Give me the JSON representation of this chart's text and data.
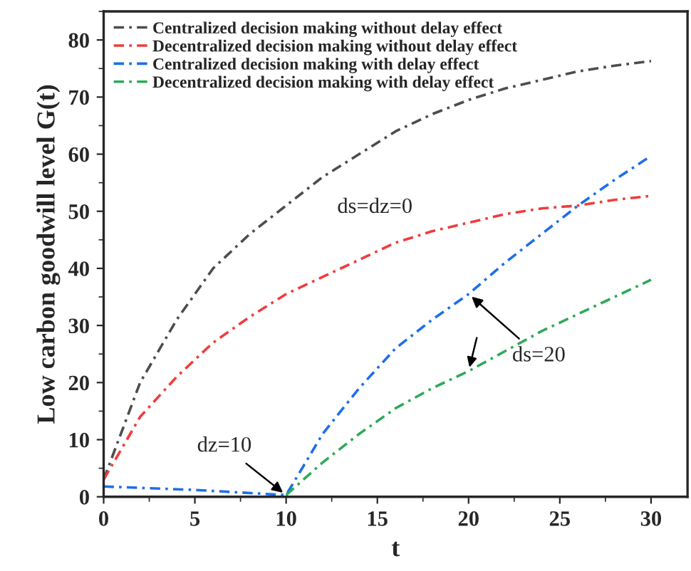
{
  "chart_data": {
    "type": "line",
    "xlabel": "t",
    "ylabel": "Low carbon goodwill level G(t)",
    "xlim": [
      0,
      32
    ],
    "ylim": [
      0,
      85
    ],
    "xticks": [
      0,
      5,
      10,
      15,
      20,
      25,
      30
    ],
    "yticks": [
      0,
      10,
      20,
      30,
      40,
      50,
      60,
      70,
      80
    ],
    "grid": false,
    "legend": "top left",
    "line_style": "dashdot",
    "marker": "none",
    "series": [
      {
        "name": "Centralized decision making without delay effect",
        "color": "#4d4d4d",
        "x": [
          0,
          2,
          4,
          6,
          8,
          10,
          12,
          14,
          16,
          18,
          20,
          22,
          24,
          26,
          28,
          30
        ],
        "values": [
          3,
          20,
          31,
          40,
          46,
          51,
          56,
          60,
          64,
          67,
          69.5,
          71.5,
          73,
          74.5,
          75.5,
          76.3
        ]
      },
      {
        "name": "Decentralized decision making without delay effect",
        "color": "#f03c3c",
        "x": [
          0,
          2,
          4,
          6,
          8,
          10,
          12,
          14,
          16,
          18,
          20,
          22,
          24,
          26,
          28,
          30
        ],
        "values": [
          3,
          14,
          21,
          27,
          31.5,
          35.5,
          38.5,
          41.5,
          44.5,
          46.5,
          48,
          49.5,
          50.5,
          51,
          52,
          52.7
        ]
      },
      {
        "name": "Centralized decision making with delay effect",
        "color": "#1f6fe6",
        "x": [
          0,
          5,
          10,
          12,
          14,
          16,
          18,
          20,
          22,
          24,
          26,
          28,
          30
        ],
        "values": [
          1.8,
          1.2,
          0.3,
          11,
          19,
          26,
          31,
          35.5,
          41,
          46,
          51,
          55.5,
          59.7
        ]
      },
      {
        "name": "Decentralized decision making with delay effect",
        "color": "#2eaa5a",
        "x": [
          10,
          12,
          14,
          16,
          18,
          20,
          22,
          24,
          26,
          28,
          30
        ],
        "values": [
          0.3,
          6,
          11,
          15.5,
          19,
          22,
          25.5,
          29,
          32,
          35,
          38
        ]
      }
    ],
    "annotations": [
      {
        "text": "ds=dz=0"
      },
      {
        "text": "dz=10",
        "x": 10,
        "y": 0.3
      },
      {
        "text": "ds=20",
        "x": 20,
        "y": 35.5
      }
    ]
  }
}
